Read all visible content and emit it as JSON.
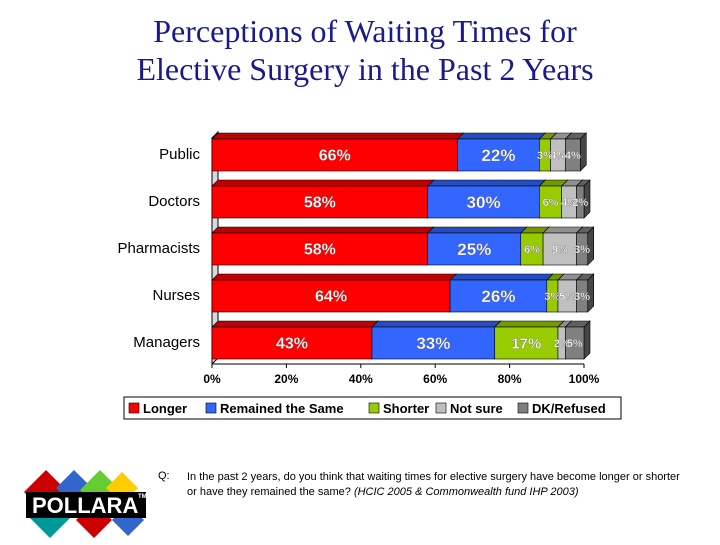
{
  "title": {
    "line1": "Perceptions of Waiting Times for",
    "line2": "Elective Surgery in the Past 2 Years"
  },
  "question": {
    "label": "Q:",
    "text": "In the past 2 years, do you think that waiting times for elective surgery have become longer or shorter or have they remained the same?",
    "source": "(HCIC 2005 & Commonwealth fund IHP 2003)"
  },
  "logo": {
    "text": "POLLARA",
    "tm": "TM"
  },
  "chart_data": {
    "type": "bar",
    "orientation": "horizontal",
    "stacked": true,
    "categories": [
      "Public",
      "Doctors",
      "Pharmacists",
      "Nurses",
      "Managers"
    ],
    "series": [
      {
        "name": "Longer",
        "color": "#ff0000",
        "values": [
          66,
          58,
          58,
          64,
          43
        ],
        "labels": [
          "66%",
          "58%",
          "58%",
          "64%",
          "43%"
        ]
      },
      {
        "name": "Remained the Same",
        "color": "#3366ff",
        "values": [
          22,
          30,
          25,
          26,
          33
        ],
        "labels": [
          "22%",
          "30%",
          "25%",
          "26%",
          "33%"
        ]
      },
      {
        "name": "Shorter",
        "color": "#99cc00",
        "values": [
          3,
          6,
          6,
          3,
          17
        ],
        "labels": [
          "3%",
          "6%",
          "6%",
          "3%",
          "17%"
        ]
      },
      {
        "name": "Not sure",
        "color": "#c0c0c0",
        "values": [
          4,
          4,
          9,
          5,
          2
        ],
        "labels": [
          "4%",
          "4%",
          "9%",
          "5%",
          "2%"
        ]
      },
      {
        "name": "DK/Refused",
        "color": "#808080",
        "values": [
          4,
          2,
          3,
          3,
          5
        ],
        "labels": [
          "4%",
          "2%",
          "3%",
          "3%",
          "5%"
        ]
      }
    ],
    "xlim": [
      0,
      100
    ],
    "xticks": [
      "0%",
      "20%",
      "40%",
      "60%",
      "80%",
      "100%"
    ],
    "legend_position": "bottom",
    "grid": false
  }
}
